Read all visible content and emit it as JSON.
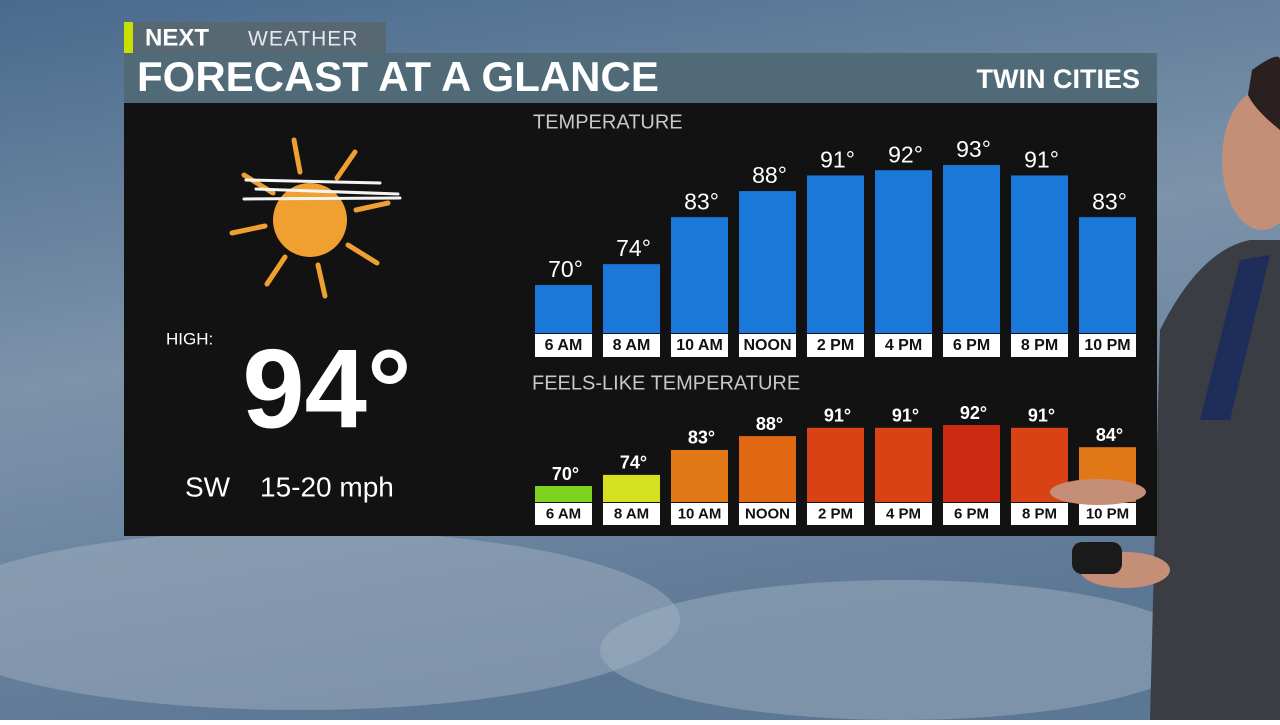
{
  "brand": "NEXT",
  "brand_sub": "WEATHER",
  "title": "FORECAST AT A GLANCE",
  "location": "TWIN CITIES",
  "high_label": "HIGH:",
  "high_value": "94°",
  "wind_direction": "SW",
  "wind_speed": "15-20 mph",
  "chart_data": [
    {
      "type": "bar",
      "title": "TEMPERATURE",
      "categories": [
        "6 AM",
        "8 AM",
        "10 AM",
        "NOON",
        "2 PM",
        "4 PM",
        "6 PM",
        "8 PM",
        "10 PM"
      ],
      "values": [
        70,
        74,
        83,
        88,
        91,
        92,
        93,
        91,
        83
      ],
      "value_labels": [
        "70°",
        "74°",
        "83°",
        "88°",
        "91°",
        "92°",
        "93°",
        "91°",
        "83°"
      ],
      "color": "#1a78d8"
    },
    {
      "type": "bar",
      "title": "FEELS-LIKE TEMPERATURE",
      "categories": [
        "6 AM",
        "8 AM",
        "10 AM",
        "NOON",
        "2 PM",
        "4 PM",
        "6 PM",
        "8 PM",
        "10 PM"
      ],
      "values": [
        70,
        74,
        83,
        88,
        91,
        91,
        92,
        91,
        84
      ],
      "value_labels": [
        "70°",
        "74°",
        "83°",
        "88°",
        "91°",
        "91°",
        "92°",
        "91°",
        "84°"
      ],
      "colors": [
        "#7ed321",
        "#d4e020",
        "#e07818",
        "#e06812",
        "#d84215",
        "#d84215",
        "#cc2a10",
        "#d84215",
        "#e07818"
      ]
    }
  ]
}
